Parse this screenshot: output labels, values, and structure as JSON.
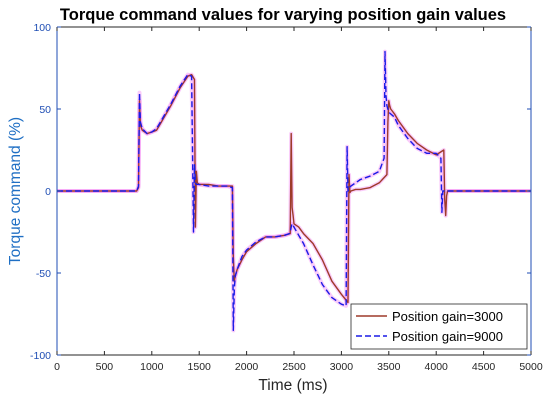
{
  "chart_data": {
    "type": "line",
    "title": "Torque command values for varying position gain values",
    "xlabel": "Time (ms)",
    "ylabel": "Torque command (%)",
    "xlim": [
      0,
      5000
    ],
    "ylim": [
      -100,
      100
    ],
    "xticks": [
      "0",
      "500",
      "1000",
      "1500",
      "2000",
      "2500",
      "3000",
      "3500",
      "4000",
      "4500",
      "5000"
    ],
    "yticks": [
      "100",
      "50",
      "0",
      "-50",
      "-100"
    ],
    "grid": false,
    "legend_position": "bottom-right",
    "colors": {
      "axis_x": "#262626",
      "axis_y": "#1f4eb4",
      "xlabel": "#262626",
      "ylabel": "#1f6fc4",
      "envelope": "#f26ff2"
    },
    "series": [
      {
        "name": "Position gain=3000",
        "color": "#9e3a2a",
        "dash": "solid",
        "x": [
          0,
          840,
          860,
          870,
          880,
          900,
          950,
          1000,
          1050,
          1100,
          1200,
          1300,
          1380,
          1420,
          1450,
          1460,
          1470,
          1480,
          1500,
          1600,
          1700,
          1800,
          1850,
          1860,
          1870,
          1880,
          1900,
          1950,
          2000,
          2100,
          2200,
          2300,
          2400,
          2460,
          2470,
          2480,
          2490,
          2500,
          2550,
          2600,
          2700,
          2800,
          2900,
          3000,
          3070,
          3080,
          3090,
          3100,
          3150,
          3200,
          3300,
          3400,
          3480,
          3490,
          3500,
          3510,
          3520,
          3560,
          3600,
          3700,
          3800,
          3900,
          4000,
          4080,
          4090,
          4100,
          4110,
          4120,
          4130,
          4200,
          5000
        ],
        "y": [
          0,
          0,
          2,
          55,
          40,
          37,
          35,
          36,
          37,
          42,
          52,
          63,
          70,
          71,
          68,
          -22,
          12,
          5,
          4,
          4,
          3,
          3,
          3,
          -40,
          -55,
          -52,
          -48,
          -42,
          -37,
          -32,
          -28,
          -28,
          -27,
          -26,
          35,
          -10,
          -15,
          -20,
          -22,
          -26,
          -32,
          -42,
          -55,
          -63,
          -68,
          10,
          -1,
          0,
          1,
          1,
          2,
          5,
          10,
          42,
          55,
          52,
          50,
          47,
          43,
          35,
          29,
          25,
          22,
          25,
          -5,
          -15,
          -3,
          0,
          0,
          0,
          0
        ]
      },
      {
        "name": "Position gain=9000",
        "color": "#1a1ae6",
        "dash": "dashed",
        "x": [
          0,
          840,
          860,
          870,
          880,
          900,
          950,
          1000,
          1050,
          1100,
          1200,
          1300,
          1380,
          1420,
          1440,
          1450,
          1460,
          1470,
          1500,
          1600,
          1700,
          1800,
          1850,
          1860,
          1870,
          1880,
          1900,
          1950,
          2000,
          2100,
          2200,
          2300,
          2400,
          2450,
          2460,
          2470,
          2480,
          2500,
          2550,
          2600,
          2700,
          2800,
          2900,
          3000,
          3050,
          3060,
          3070,
          3080,
          3100,
          3150,
          3200,
          3300,
          3400,
          3450,
          3460,
          3470,
          3480,
          3500,
          3560,
          3600,
          3700,
          3800,
          3900,
          4000,
          4050,
          4060,
          4070,
          4080,
          4100,
          4200,
          5000
        ],
        "y": [
          0,
          0,
          3,
          60,
          42,
          38,
          35,
          36,
          38,
          43,
          53,
          64,
          71,
          70,
          -25,
          16,
          5,
          4,
          4,
          3,
          3,
          3,
          2,
          -85,
          -60,
          -52,
          -48,
          -40,
          -36,
          -31,
          -28,
          -28,
          -27,
          -26,
          -25,
          -22,
          -20,
          -22,
          -27,
          -32,
          -45,
          -57,
          -65,
          -69,
          -70,
          27,
          0,
          2,
          3,
          5,
          7,
          9,
          12,
          20,
          85,
          58,
          52,
          48,
          45,
          40,
          32,
          26,
          23,
          23,
          20,
          -13,
          0,
          0,
          0,
          0,
          0
        ]
      }
    ]
  }
}
